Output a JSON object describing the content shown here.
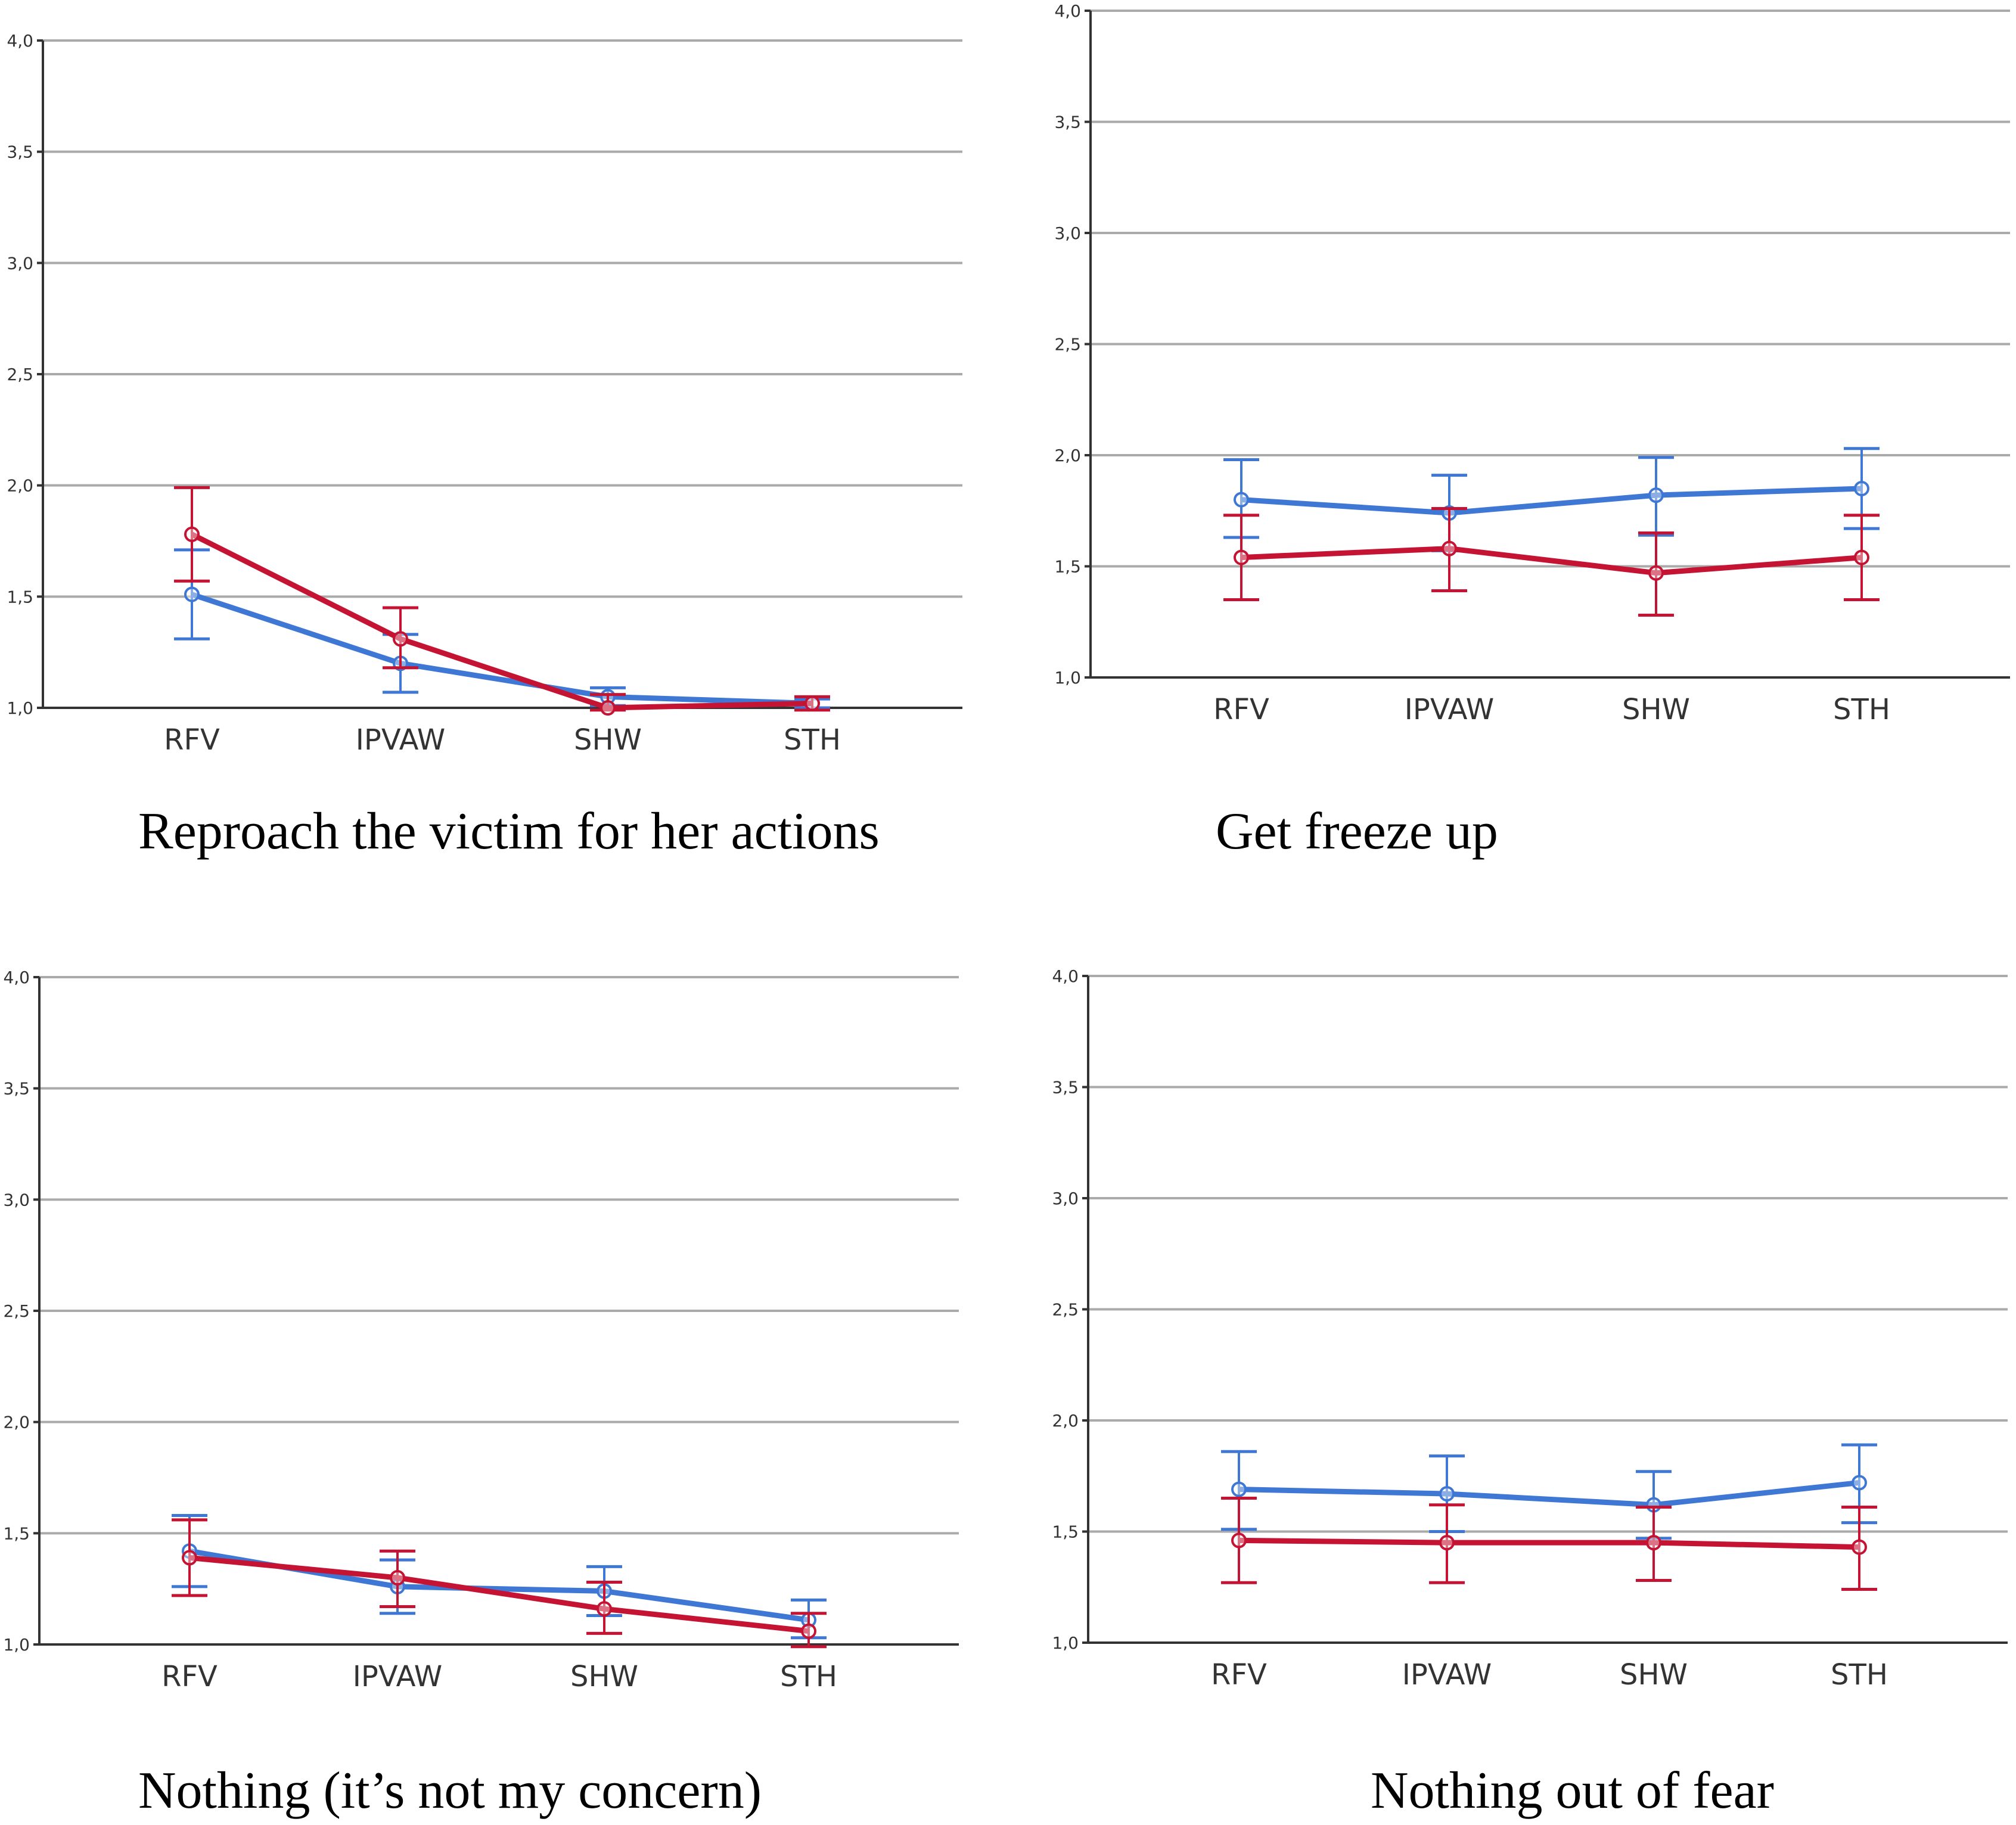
{
  "colors": {
    "series_a": "#3f78d4",
    "series_b": "#c51433",
    "grid": "#aaaaaa",
    "axis": "#333333"
  },
  "chart_data": [
    {
      "type": "line",
      "title": "Reproach the victim for her actions",
      "categories": [
        "RFV",
        "IPVAW",
        "SHW",
        "STH"
      ],
      "y_ticks": [
        "1,0",
        "1,5",
        "2,0",
        "2,5",
        "3,0",
        "3,5",
        "4,0"
      ],
      "ylim": [
        1.0,
        4.0
      ],
      "grid": true,
      "series": [
        {
          "name": "blue",
          "color": "#3f78d4",
          "values": [
            1.51,
            1.2,
            1.05,
            1.02
          ],
          "err_low": [
            1.31,
            1.07,
            1.01,
            1.0
          ],
          "err_high": [
            1.71,
            1.33,
            1.09,
            1.04
          ]
        },
        {
          "name": "red",
          "color": "#c51433",
          "values": [
            1.78,
            1.31,
            1.0,
            1.02
          ],
          "err_low": [
            1.57,
            1.18,
            0.99,
            0.99
          ],
          "err_high": [
            1.99,
            1.45,
            1.06,
            1.05
          ]
        }
      ]
    },
    {
      "type": "line",
      "title": "Get freeze up",
      "categories": [
        "RFV",
        "IPVAW",
        "SHW",
        "STH"
      ],
      "y_ticks": [
        "1,0",
        "1,5",
        "2,0",
        "2,5",
        "3,0",
        "3,5",
        "4,0"
      ],
      "ylim": [
        1.0,
        4.0
      ],
      "grid": true,
      "series": [
        {
          "name": "blue",
          "color": "#3f78d4",
          "values": [
            1.8,
            1.74,
            1.82,
            1.85
          ],
          "err_low": [
            1.63,
            1.57,
            1.64,
            1.67
          ],
          "err_high": [
            1.98,
            1.91,
            1.99,
            2.03
          ]
        },
        {
          "name": "red",
          "color": "#c51433",
          "values": [
            1.54,
            1.58,
            1.47,
            1.54
          ],
          "err_low": [
            1.35,
            1.39,
            1.28,
            1.35
          ],
          "err_high": [
            1.73,
            1.76,
            1.65,
            1.73
          ]
        }
      ]
    },
    {
      "type": "line",
      "title": "Nothing (it’s not my concern)",
      "categories": [
        "RFV",
        "IPVAW",
        "SHW",
        "STH"
      ],
      "y_ticks": [
        "1,0",
        "1,5",
        "2,0",
        "2,5",
        "3,0",
        "3,5",
        "4,0"
      ],
      "ylim": [
        1.0,
        4.0
      ],
      "grid": true,
      "series": [
        {
          "name": "blue",
          "color": "#3f78d4",
          "values": [
            1.42,
            1.26,
            1.24,
            1.11
          ],
          "err_low": [
            1.26,
            1.14,
            1.13,
            1.03
          ],
          "err_high": [
            1.58,
            1.38,
            1.35,
            1.2
          ]
        },
        {
          "name": "red",
          "color": "#c51433",
          "values": [
            1.39,
            1.3,
            1.16,
            1.06
          ],
          "err_low": [
            1.22,
            1.17,
            1.05,
            0.99
          ],
          "err_high": [
            1.56,
            1.42,
            1.28,
            1.14
          ]
        }
      ]
    },
    {
      "type": "line",
      "title": "Nothing out of fear",
      "categories": [
        "RFV",
        "IPVAW",
        "SHW",
        "STH"
      ],
      "y_ticks": [
        "1,0",
        "1,5",
        "2,0",
        "2,5",
        "3,0",
        "3,5",
        "4,0"
      ],
      "ylim": [
        1.0,
        4.0
      ],
      "grid": true,
      "series": [
        {
          "name": "blue",
          "color": "#3f78d4",
          "values": [
            1.69,
            1.67,
            1.62,
            1.72
          ],
          "err_low": [
            1.51,
            1.5,
            1.47,
            1.54
          ],
          "err_high": [
            1.86,
            1.84,
            1.77,
            1.89
          ]
        },
        {
          "name": "red",
          "color": "#c51433",
          "values": [
            1.46,
            1.45,
            1.45,
            1.43
          ],
          "err_low": [
            1.27,
            1.27,
            1.28,
            1.24
          ],
          "err_high": [
            1.65,
            1.62,
            1.61,
            1.61
          ]
        }
      ]
    }
  ]
}
